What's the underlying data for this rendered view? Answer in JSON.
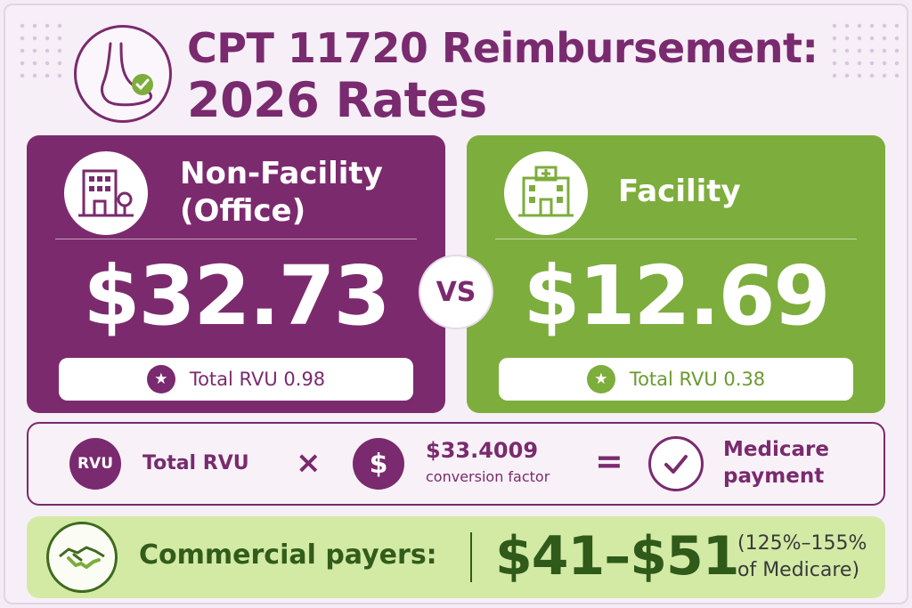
{
  "title": {
    "line1": "CPT 11720 Reimbursement:",
    "line2": "2026 Rates"
  },
  "non_facility": {
    "heading_line1": "Non-Facility",
    "heading_line2": "(Office)",
    "price": "$32.73",
    "rvu_label": "Total RVU 0.98",
    "color": "#7c2a6e",
    "icon": "office-building-icon"
  },
  "vs_label": "VS",
  "facility": {
    "heading": "Facility",
    "price": "$12.69",
    "rvu_label": "Total RVU 0.38",
    "color": "#7dad3c",
    "icon": "hospital-icon"
  },
  "formula": {
    "rvu_badge": "RVU",
    "rvu_label": "Total RVU",
    "times": "×",
    "dollar": "$",
    "conversion_value": "$33.4009",
    "conversion_label": "conversion factor",
    "equals": "=",
    "result_line1": "Medicare",
    "result_line2": "payment"
  },
  "commercial": {
    "label": "Commercial payers:",
    "range": "$41–$51",
    "note_line1": "(125%–155%",
    "note_line2": "of Medicare)",
    "color": "#d3eaa5",
    "icon": "handshake-icon"
  }
}
